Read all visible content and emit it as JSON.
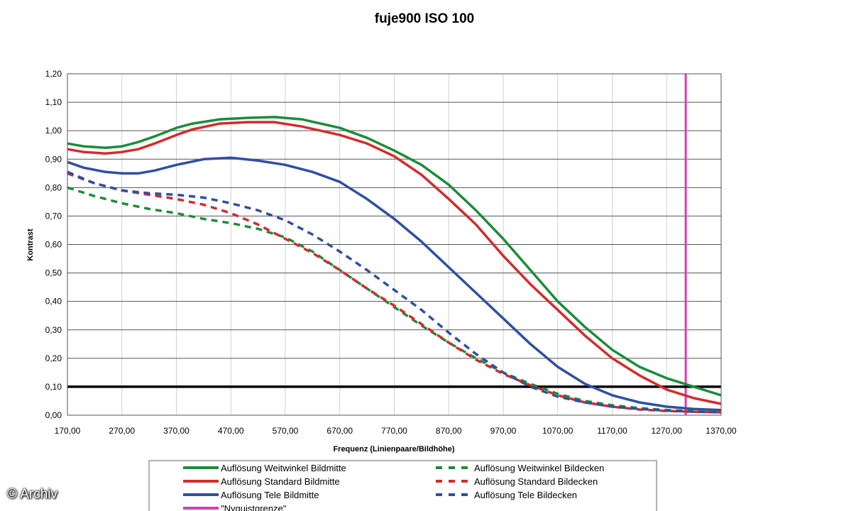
{
  "chart_data": {
    "type": "line",
    "title": "fuje900   ISO 100",
    "xlabel": "Frequenz (Linienpaare/Bildhöhe)",
    "ylabel": "Kontrast",
    "xlim": [
      170,
      1370
    ],
    "ylim": [
      0,
      1.2
    ],
    "x_ticks": [
      "170,00",
      "270,00",
      "370,00",
      "470,00",
      "570,00",
      "670,00",
      "770,00",
      "870,00",
      "970,00",
      "1070,00",
      "1170,00",
      "1270,00",
      "1370,00"
    ],
    "y_ticks": [
      "0,00",
      "0,10",
      "0,20",
      "0,30",
      "0,40",
      "0,50",
      "0,60",
      "0,70",
      "0,80",
      "0,90",
      "1,00",
      "1,10",
      "1,20"
    ],
    "grid": true,
    "legend_position": "bottom",
    "series": [
      {
        "name": "Auflösung Weitwinkel Bildmitte",
        "color": "#1e8b3a",
        "dash": false,
        "x": [
          170,
          200,
          240,
          270,
          300,
          330,
          370,
          400,
          450,
          500,
          550,
          600,
          670,
          720,
          770,
          820,
          870,
          920,
          970,
          1020,
          1070,
          1120,
          1170,
          1220,
          1270,
          1320,
          1370
        ],
        "y": [
          0.955,
          0.945,
          0.94,
          0.945,
          0.96,
          0.98,
          1.01,
          1.025,
          1.04,
          1.045,
          1.048,
          1.04,
          1.01,
          0.975,
          0.93,
          0.88,
          0.81,
          0.72,
          0.62,
          0.51,
          0.4,
          0.31,
          0.23,
          0.17,
          0.13,
          0.1,
          0.07
        ]
      },
      {
        "name": "Auflösung Standard Bildmitte",
        "color": "#d42b2b",
        "dash": false,
        "x": [
          170,
          200,
          240,
          270,
          300,
          330,
          370,
          400,
          450,
          500,
          550,
          600,
          670,
          720,
          770,
          820,
          870,
          920,
          970,
          1020,
          1070,
          1120,
          1170,
          1220,
          1270,
          1320,
          1370
        ],
        "y": [
          0.935,
          0.925,
          0.92,
          0.925,
          0.935,
          0.955,
          0.985,
          1.005,
          1.025,
          1.03,
          1.03,
          1.015,
          0.985,
          0.955,
          0.91,
          0.845,
          0.76,
          0.67,
          0.56,
          0.46,
          0.37,
          0.28,
          0.2,
          0.14,
          0.09,
          0.06,
          0.04
        ]
      },
      {
        "name": "Auflösung Tele Bildmitte",
        "color": "#2f4fa1",
        "dash": false,
        "x": [
          170,
          200,
          240,
          270,
          300,
          330,
          370,
          420,
          470,
          520,
          570,
          620,
          670,
          720,
          770,
          820,
          870,
          920,
          970,
          1020,
          1070,
          1120,
          1170,
          1220,
          1270,
          1320,
          1370
        ],
        "y": [
          0.89,
          0.87,
          0.855,
          0.85,
          0.85,
          0.86,
          0.88,
          0.9,
          0.905,
          0.895,
          0.88,
          0.855,
          0.82,
          0.76,
          0.69,
          0.61,
          0.52,
          0.43,
          0.34,
          0.25,
          0.17,
          0.11,
          0.07,
          0.045,
          0.03,
          0.022,
          0.018
        ]
      },
      {
        "name": "Auflösung Weitwinkel Bildecken",
        "color": "#1e8b3a",
        "dash": true,
        "x": [
          170,
          220,
          270,
          320,
          370,
          420,
          470,
          520,
          570,
          620,
          670,
          720,
          770,
          820,
          870,
          920,
          970,
          1020,
          1070,
          1120,
          1170,
          1220,
          1270,
          1320,
          1370
        ],
        "y": [
          0.8,
          0.77,
          0.745,
          0.725,
          0.71,
          0.69,
          0.675,
          0.655,
          0.625,
          0.575,
          0.51,
          0.445,
          0.38,
          0.315,
          0.255,
          0.2,
          0.15,
          0.11,
          0.075,
          0.05,
          0.035,
          0.025,
          0.018,
          0.014,
          0.012
        ]
      },
      {
        "name": "Auflösung Standard Bildecken",
        "color": "#d42b2b",
        "dash": true,
        "x": [
          170,
          220,
          270,
          320,
          370,
          420,
          470,
          520,
          570,
          620,
          670,
          720,
          770,
          820,
          870,
          920,
          970,
          1020,
          1070,
          1120,
          1170,
          1220,
          1270,
          1320,
          1370
        ],
        "y": [
          0.85,
          0.815,
          0.79,
          0.775,
          0.76,
          0.74,
          0.71,
          0.67,
          0.62,
          0.57,
          0.51,
          0.445,
          0.385,
          0.32,
          0.255,
          0.195,
          0.145,
          0.105,
          0.07,
          0.045,
          0.03,
          0.02,
          0.015,
          0.012,
          0.01
        ]
      },
      {
        "name": "Auflösung Tele Bildecken",
        "color": "#2f4fa1",
        "dash": true,
        "x": [
          170,
          220,
          270,
          320,
          370,
          420,
          470,
          520,
          570,
          620,
          670,
          720,
          770,
          820,
          870,
          920,
          970,
          1020,
          1070,
          1120,
          1170,
          1220,
          1270,
          1320,
          1370
        ],
        "y": [
          0.855,
          0.815,
          0.79,
          0.78,
          0.775,
          0.765,
          0.745,
          0.72,
          0.685,
          0.635,
          0.575,
          0.51,
          0.44,
          0.37,
          0.29,
          0.215,
          0.15,
          0.1,
          0.065,
          0.045,
          0.03,
          0.022,
          0.016,
          0.012,
          0.01
        ]
      }
    ],
    "reference_lines": [
      {
        "name": "\"Nyquistgrenze\"",
        "color": "#d63fb0",
        "orientation": "vertical",
        "x": 1305
      },
      {
        "name": "",
        "color": "#000000",
        "orientation": "horizontal",
        "y": 0.1
      }
    ]
  },
  "watermark": "© Archiv"
}
